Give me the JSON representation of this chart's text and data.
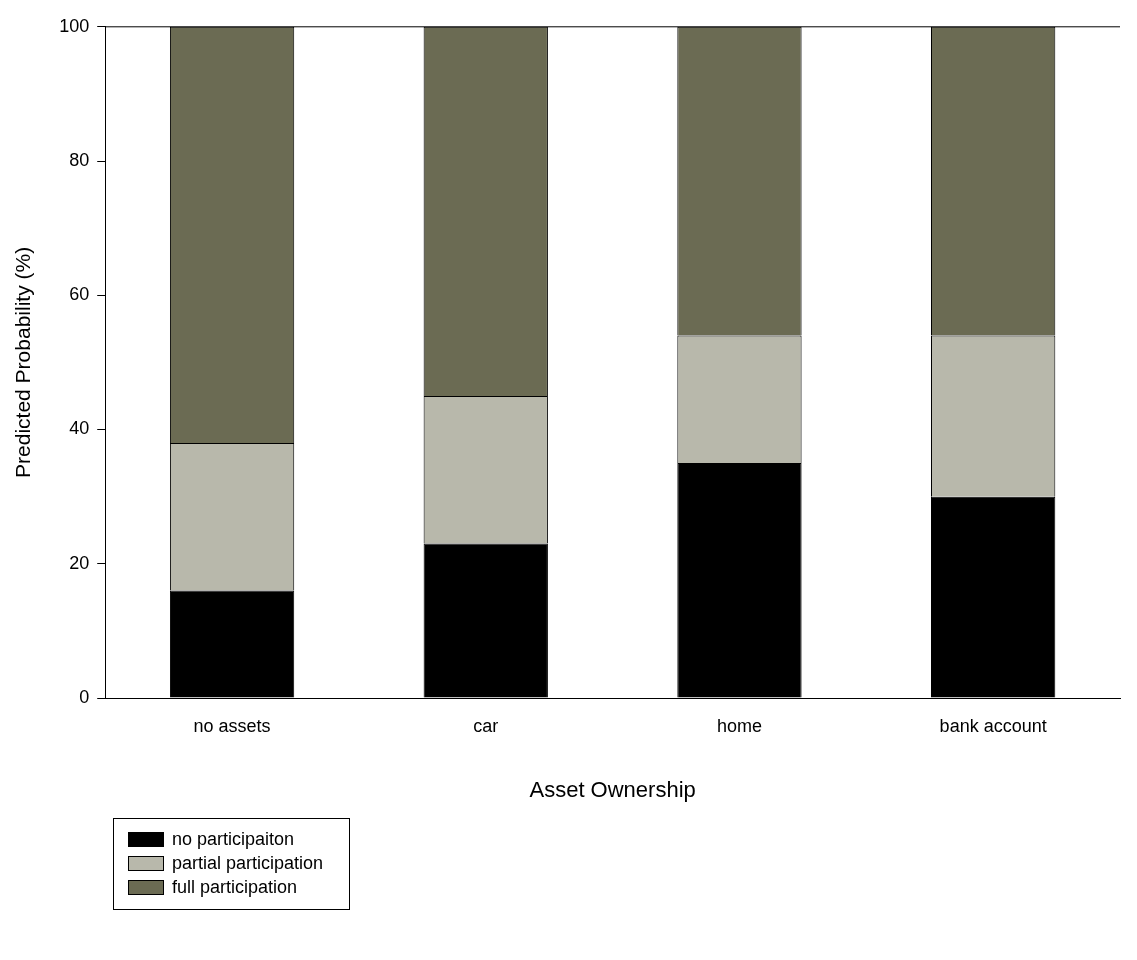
{
  "chart_data": {
    "type": "bar",
    "xlabel": "Asset Ownership",
    "ylabel": "Predicted Probability (%)",
    "categories": [
      "no assets",
      "car",
      "home",
      "bank account"
    ],
    "series": [
      {
        "name": "no participaiton",
        "color": "#000000",
        "values": [
          16,
          23,
          35,
          30
        ]
      },
      {
        "name": "partial participation",
        "color": "#b8b8ab",
        "values": [
          22,
          22,
          19,
          24
        ]
      },
      {
        "name": "full participation",
        "color": "#6b6b53",
        "values": [
          62,
          55,
          46,
          46
        ]
      }
    ],
    "stacked": true,
    "ylim": [
      0,
      100
    ],
    "yticks": [
      0,
      20,
      40,
      60,
      80,
      100
    ],
    "grid": false,
    "legend": "bottom left"
  }
}
